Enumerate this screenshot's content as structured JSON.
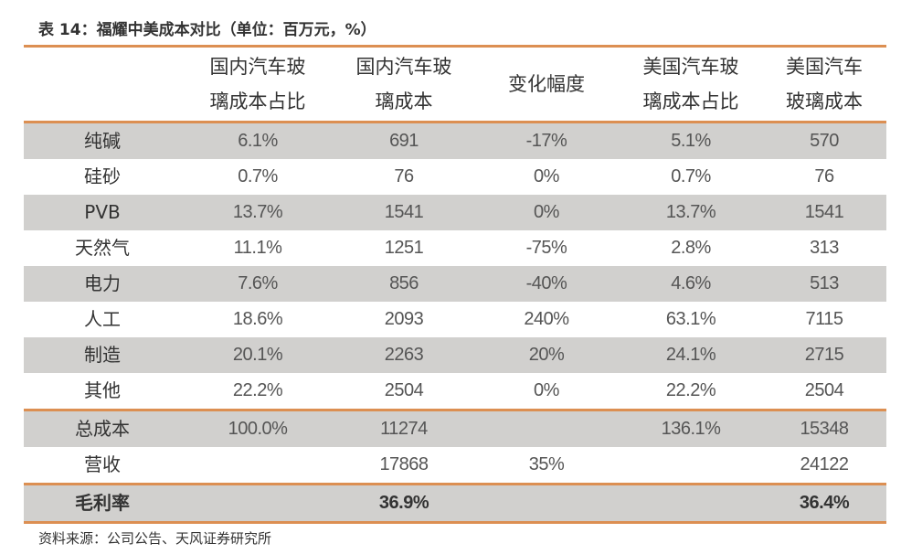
{
  "title": "表 14：福耀中美成本对比（单位：百万元，%）",
  "headers": [
    "",
    "国内汽车玻\n璃成本占比",
    "国内汽车玻\n璃成本",
    "变化幅度",
    "美国汽车玻\n璃成本占比",
    "美国汽车\n玻璃成本"
  ],
  "header_lines": [
    [
      "",
      ""
    ],
    [
      "国内汽车玻",
      "璃成本占比"
    ],
    [
      "国内汽车玻",
      "璃成本"
    ],
    [
      "变化幅度",
      ""
    ],
    [
      "美国汽车玻",
      "璃成本占比"
    ],
    [
      "美国汽车",
      "玻璃成本"
    ]
  ],
  "rows": [
    [
      "纯碱",
      "6.1%",
      "691",
      "-17%",
      "5.1%",
      "570"
    ],
    [
      "硅砂",
      "0.7%",
      "76",
      "0%",
      "0.7%",
      "76"
    ],
    [
      "PVB",
      "13.7%",
      "1541",
      "0%",
      "13.7%",
      "1541"
    ],
    [
      "天然气",
      "11.1%",
      "1251",
      "-75%",
      "2.8%",
      "313"
    ],
    [
      "电力",
      "7.6%",
      "856",
      "-40%",
      "4.6%",
      "513"
    ],
    [
      "人工",
      "18.6%",
      "2093",
      "240%",
      "63.1%",
      "7115"
    ],
    [
      "制造",
      "20.1%",
      "2263",
      "20%",
      "24.1%",
      "2715"
    ],
    [
      "其他",
      "22.2%",
      "2504",
      "0%",
      "22.2%",
      "2504"
    ]
  ],
  "totals": [
    [
      "总成本",
      "100.0%",
      "11274",
      "",
      "136.1%",
      "15348"
    ],
    [
      "营收",
      "",
      "17868",
      "35%",
      "",
      "24122"
    ]
  ],
  "margin": [
    "毛利率",
    "",
    "36.9%",
    "",
    "",
    "36.4%"
  ],
  "source": "资料来源：公司公告、天风证券研究所",
  "colors": {
    "accent": "#dc8f52",
    "band": "#d1d0ce"
  }
}
